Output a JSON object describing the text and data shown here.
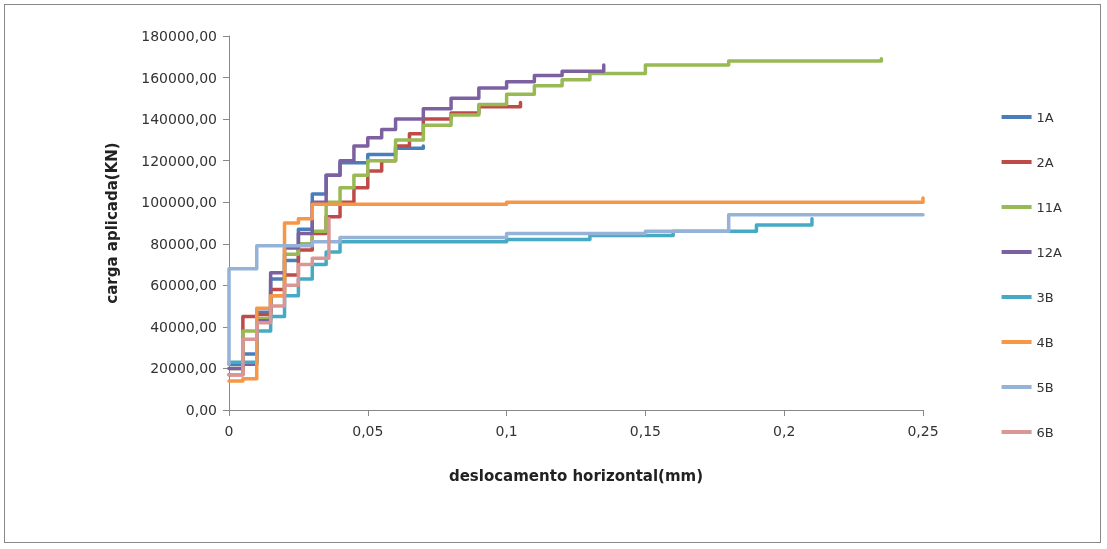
{
  "chart_data": {
    "type": "step",
    "xlabel": "deslocamento horizontal(mm)",
    "ylabel": "carga aplicada(KN)",
    "legend": "right",
    "grid": false,
    "marker": "none",
    "line_style": "solid",
    "xlim": [
      0,
      0.25
    ],
    "xticks": [
      0,
      {
        "value": 0.05,
        "label": "0,05"
      },
      {
        "value": 0.1,
        "label": "0,1"
      },
      {
        "value": 0.15,
        "label": "0,15"
      },
      {
        "value": 0.2,
        "label": "0,2"
      },
      {
        "value": 0.25,
        "label": "0,25"
      }
    ],
    "ylim": [
      0,
      180000
    ],
    "yticks": [
      {
        "value": 0,
        "label": "0,00"
      },
      {
        "value": 20000,
        "label": "20000,00"
      },
      {
        "value": 40000,
        "label": "40000,00"
      },
      {
        "value": 60000,
        "label": "60000,00"
      },
      {
        "value": 80000,
        "label": "80000,00"
      },
      {
        "value": 100000,
        "label": "100000,00"
      },
      {
        "value": 120000,
        "label": "120000,00"
      },
      {
        "value": 140000,
        "label": "140000,00"
      },
      {
        "value": 160000,
        "label": "160000,00"
      },
      {
        "value": 180000,
        "label": "180000,00"
      }
    ],
    "series": [
      {
        "name": "1A",
        "color": "#4a7ebb",
        "x": [
          0,
          0.005,
          0.01,
          0.015,
          0.02,
          0.025,
          0.03,
          0.035,
          0.04,
          0.05,
          0.06,
          0.07
        ],
        "values": [
          22000,
          27000,
          47000,
          63000,
          72000,
          87000,
          104000,
          113000,
          119000,
          123000,
          126000,
          127000
        ]
      },
      {
        "name": "2A",
        "color": "#be4b48",
        "x": [
          0,
          0.005,
          0.01,
          0.015,
          0.02,
          0.025,
          0.03,
          0.035,
          0.04,
          0.045,
          0.05,
          0.055,
          0.06,
          0.065,
          0.07,
          0.08,
          0.09,
          0.105
        ],
        "values": [
          17000,
          45000,
          46000,
          58000,
          65000,
          77000,
          85000,
          93000,
          100000,
          107000,
          115000,
          120000,
          127000,
          133000,
          140000,
          143000,
          146000,
          148000
        ]
      },
      {
        "name": "11A",
        "color": "#98b954",
        "x": [
          0,
          0.005,
          0.01,
          0.015,
          0.02,
          0.025,
          0.03,
          0.035,
          0.04,
          0.045,
          0.05,
          0.06,
          0.07,
          0.08,
          0.09,
          0.1,
          0.11,
          0.12,
          0.13,
          0.15,
          0.18,
          0.235
        ],
        "values": [
          20000,
          38000,
          44000,
          55000,
          75000,
          80000,
          86000,
          100000,
          107000,
          113000,
          120000,
          130000,
          137000,
          142000,
          147000,
          152000,
          156000,
          159000,
          162000,
          166000,
          168000,
          169000
        ]
      },
      {
        "name": "12A",
        "color": "#7d60a0",
        "x": [
          0,
          0.005,
          0.01,
          0.015,
          0.02,
          0.025,
          0.03,
          0.035,
          0.04,
          0.045,
          0.05,
          0.055,
          0.06,
          0.07,
          0.08,
          0.09,
          0.1,
          0.11,
          0.12,
          0.135
        ],
        "values": [
          20000,
          22000,
          43000,
          66000,
          78000,
          85000,
          100000,
          113000,
          120000,
          127000,
          131000,
          135000,
          140000,
          145000,
          150000,
          155000,
          158000,
          161000,
          163000,
          166000
        ]
      },
      {
        "name": "3B",
        "color": "#46aac5",
        "x": [
          0,
          0.005,
          0.01,
          0.015,
          0.02,
          0.025,
          0.03,
          0.035,
          0.04,
          0.1,
          0.13,
          0.16,
          0.19,
          0.21
        ],
        "values": [
          23000,
          23000,
          38000,
          45000,
          55000,
          63000,
          70000,
          76000,
          81000,
          82000,
          84000,
          86000,
          89000,
          92000
        ]
      },
      {
        "name": "4B",
        "color": "#f79646",
        "x": [
          0,
          0.005,
          0.01,
          0.015,
          0.02,
          0.025,
          0.03,
          0.1,
          0.25
        ],
        "values": [
          14000,
          15000,
          49000,
          55000,
          90000,
          92000,
          99000,
          100000,
          102000
        ]
      },
      {
        "name": "5B",
        "color": "#95b3d7",
        "x": [
          0,
          0,
          0.01,
          0.01,
          0.03,
          0.04,
          0.1,
          0.15,
          0.18,
          0.18,
          0.25
        ],
        "values": [
          22000,
          68000,
          68000,
          79000,
          81000,
          83000,
          85000,
          86000,
          87000,
          94000,
          94000
        ]
      },
      {
        "name": "6B",
        "color": "#d99694",
        "x": [
          0,
          0.005,
          0.005,
          0.01,
          0.015,
          0.02,
          0.025,
          0.03,
          0.035,
          0.036
        ],
        "values": [
          17000,
          17000,
          34000,
          42000,
          50000,
          60000,
          70000,
          73000,
          73000,
          92000
        ]
      }
    ]
  }
}
